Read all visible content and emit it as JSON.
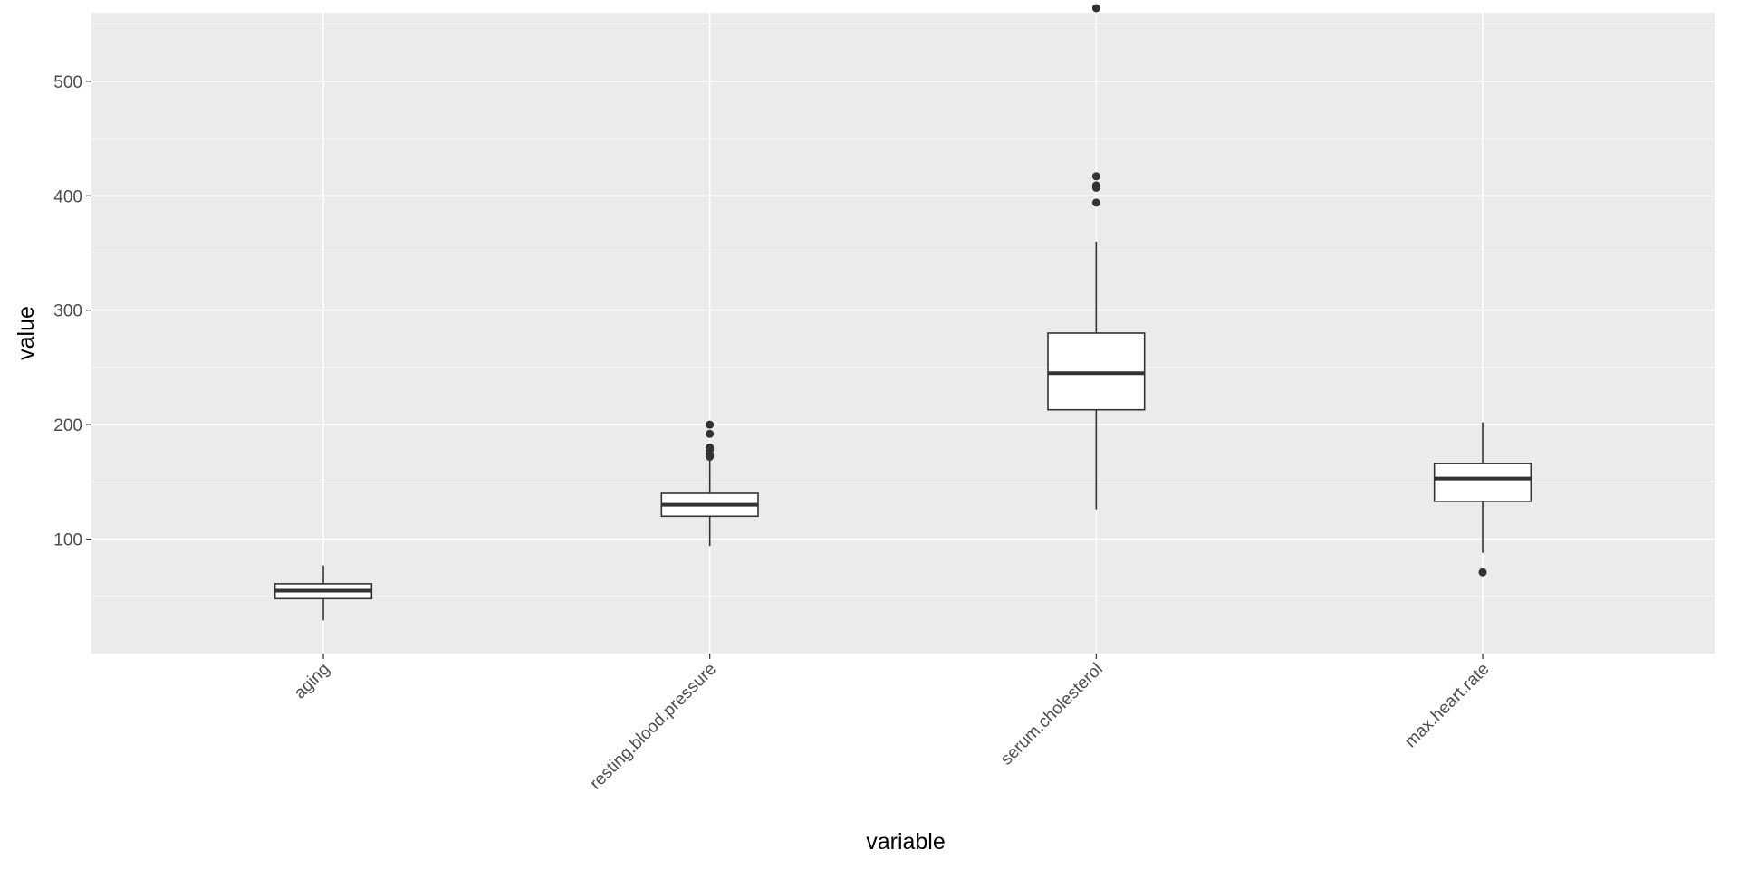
{
  "chart_data": {
    "type": "boxplot",
    "xlabel": "variable",
    "ylabel": "value",
    "categories": [
      "aging",
      "resting.blood.pressure",
      "serum.cholesterol",
      "max.heart.rate"
    ],
    "ylim": [
      0,
      560
    ],
    "yticks": [
      100,
      200,
      300,
      400,
      500
    ],
    "grid": true,
    "boxes": [
      {
        "category": "aging",
        "lower_whisker": 29,
        "q1": 48,
        "median": 55,
        "q3": 61,
        "upper_whisker": 77,
        "outliers": []
      },
      {
        "category": "resting.blood.pressure",
        "lower_whisker": 94,
        "q1": 120,
        "median": 130,
        "q3": 140,
        "upper_whisker": 170,
        "outliers": [
          172,
          174,
          178,
          180,
          192,
          200
        ]
      },
      {
        "category": "serum.cholesterol",
        "lower_whisker": 126,
        "q1": 213,
        "median": 245,
        "q3": 280,
        "upper_whisker": 360,
        "outliers": [
          394,
          407,
          409,
          417,
          564
        ]
      },
      {
        "category": "max.heart.rate",
        "lower_whisker": 88,
        "q1": 133,
        "median": 153,
        "q3": 166,
        "upper_whisker": 202,
        "outliers": [
          71
        ]
      }
    ]
  }
}
